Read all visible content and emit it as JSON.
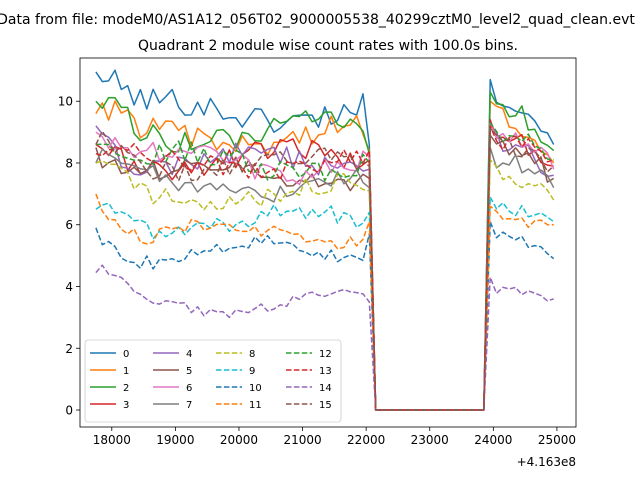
{
  "figure": {
    "suptitle": "Data from file: modeM0/AS1A12_056T02_9000005538_40299cztM0_level2_quad_clean.evt",
    "offset_text": "+4.163e8"
  },
  "chart_data": {
    "type": "line",
    "title": "Quadrant 2 module wise count rates with 100.0s bins.",
    "xlabel": "",
    "ylabel": "",
    "xlim": [
      17500,
      25300
    ],
    "ylim": [
      -0.55,
      11.4
    ],
    "x_offset": 416300000,
    "xticks": [
      18000,
      19000,
      20000,
      21000,
      22000,
      23000,
      24000,
      25000
    ],
    "xtick_labels": [
      "18000",
      "19000",
      "20000",
      "21000",
      "22000",
      "23000",
      "24000",
      "25000"
    ],
    "yticks": [
      0,
      2,
      4,
      6,
      8,
      10
    ],
    "ytick_labels": [
      "0",
      "2",
      "4",
      "6",
      "8",
      "10"
    ],
    "grid": false,
    "legend_position": "lower-left",
    "legend_columns": 4,
    "segments": [
      {
        "x_start": 17750,
        "x_end": 22050,
        "step": 100
      },
      {
        "x_start": 22150,
        "x_end": 23850,
        "step": 100
      },
      {
        "x_start": 23950,
        "x_end": 24950,
        "step": 100
      }
    ],
    "gap_value": 0,
    "series": [
      {
        "name": "0",
        "color": "#1f77b4",
        "dash": "solid",
        "level1": 9.7,
        "level2": 10.3,
        "first": 10.95,
        "end1": 8.6,
        "end2": 8.6
      },
      {
        "name": "1",
        "color": "#ff7f0e",
        "dash": "solid",
        "level1": 8.9,
        "level2": 9.6,
        "first": 9.6,
        "end1": 8.4,
        "end2": 8.0
      },
      {
        "name": "2",
        "color": "#2ca02c",
        "dash": "solid",
        "level1": 9.0,
        "level2": 9.9,
        "first": 10.0,
        "end1": 8.3,
        "end2": 8.4
      },
      {
        "name": "3",
        "color": "#d62728",
        "dash": "solid",
        "level1": 8.1,
        "level2": 9.0,
        "first": 8.6,
        "end1": 8.1,
        "end2": 7.9
      },
      {
        "name": "4",
        "color": "#9467bd",
        "dash": "solid",
        "level1": 8.0,
        "level2": 8.7,
        "first": 9.2,
        "end1": 7.8,
        "end2": 7.6
      },
      {
        "name": "5",
        "color": "#8c564b",
        "dash": "solid",
        "level1": 7.7,
        "level2": 8.5,
        "first": 8.5,
        "end1": 7.5,
        "end2": 7.5
      },
      {
        "name": "6",
        "color": "#e377c2",
        "dash": "solid",
        "level1": 8.0,
        "level2": 8.9,
        "first": 9.0,
        "end1": 8.2,
        "end2": 7.8
      },
      {
        "name": "7",
        "color": "#7f7f7f",
        "dash": "solid",
        "level1": 7.3,
        "level2": 8.1,
        "first": 8.0,
        "end1": 7.2,
        "end2": 7.2
      },
      {
        "name": "8",
        "color": "#bcbd22",
        "dash": "dashed",
        "level1": 7.0,
        "level2": 7.7,
        "first": 8.0,
        "end1": 7.1,
        "end2": 6.8
      },
      {
        "name": "9",
        "color": "#17becf",
        "dash": "dashed",
        "level1": 6.1,
        "level2": 6.5,
        "first": 6.5,
        "end1": 6.4,
        "end2": 6.1
      },
      {
        "name": "10",
        "color": "#1f77b4",
        "dash": "dashed",
        "level1": 5.1,
        "level2": 5.7,
        "first": 5.9,
        "end1": 5.7,
        "end2": 4.9
      },
      {
        "name": "11",
        "color": "#ff7f0e",
        "dash": "dashed",
        "level1": 5.7,
        "level2": 6.2,
        "first": 7.0,
        "end1": 6.1,
        "end2": 6.0
      },
      {
        "name": "12",
        "color": "#2ca02c",
        "dash": "dashed",
        "level1": 8.0,
        "level2": 8.9,
        "first": 8.6,
        "end1": 8.0,
        "end2": 8.1
      },
      {
        "name": "13",
        "color": "#d62728",
        "dash": "dashed",
        "level1": 8.0,
        "level2": 8.8,
        "first": 8.3,
        "end1": 8.4,
        "end2": 8.1
      },
      {
        "name": "14",
        "color": "#9467bd",
        "dash": "dashed",
        "level1": 3.5,
        "level2": 3.9,
        "first": 4.45,
        "end1": 3.5,
        "end2": 3.6
      },
      {
        "name": "15",
        "color": "#8c564b",
        "dash": "dashed",
        "level1": 8.0,
        "level2": 8.7,
        "first": 8.6,
        "end1": 7.9,
        "end2": 7.9
      }
    ]
  }
}
